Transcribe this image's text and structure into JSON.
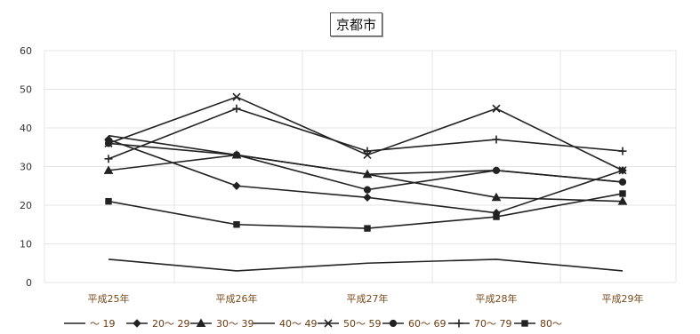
{
  "chart_data": {
    "type": "line",
    "title": "京都市",
    "categories": [
      "平成25年",
      "平成26年",
      "平成27年",
      "平成28年",
      "平成29年"
    ],
    "ylim": [
      0,
      60
    ],
    "yticks": [
      0,
      10,
      20,
      30,
      40,
      50,
      60
    ],
    "grid": true,
    "legend_position": "bottom",
    "series": [
      {
        "name": "〜 19",
        "marker": "none",
        "values": [
          6,
          3,
          5,
          6,
          3
        ]
      },
      {
        "name": "20〜 29",
        "marker": "diamond",
        "values": [
          37,
          25,
          22,
          18,
          29
        ]
      },
      {
        "name": "30〜 39",
        "marker": "triangle",
        "values": [
          29,
          33,
          28,
          22,
          21
        ]
      },
      {
        "name": "40〜 49",
        "marker": "none",
        "values": [
          38,
          33,
          28,
          29,
          26
        ]
      },
      {
        "name": "50〜 59",
        "marker": "x",
        "values": [
          36,
          48,
          33,
          45,
          29
        ]
      },
      {
        "name": "60〜 69",
        "marker": "circle",
        "values": [
          36,
          33,
          24,
          29,
          26
        ]
      },
      {
        "name": "70〜 79",
        "marker": "plus",
        "values": [
          32,
          45,
          34,
          37,
          34
        ]
      },
      {
        "name": "80〜",
        "marker": "square",
        "values": [
          21,
          15,
          14,
          17,
          23
        ]
      }
    ]
  }
}
